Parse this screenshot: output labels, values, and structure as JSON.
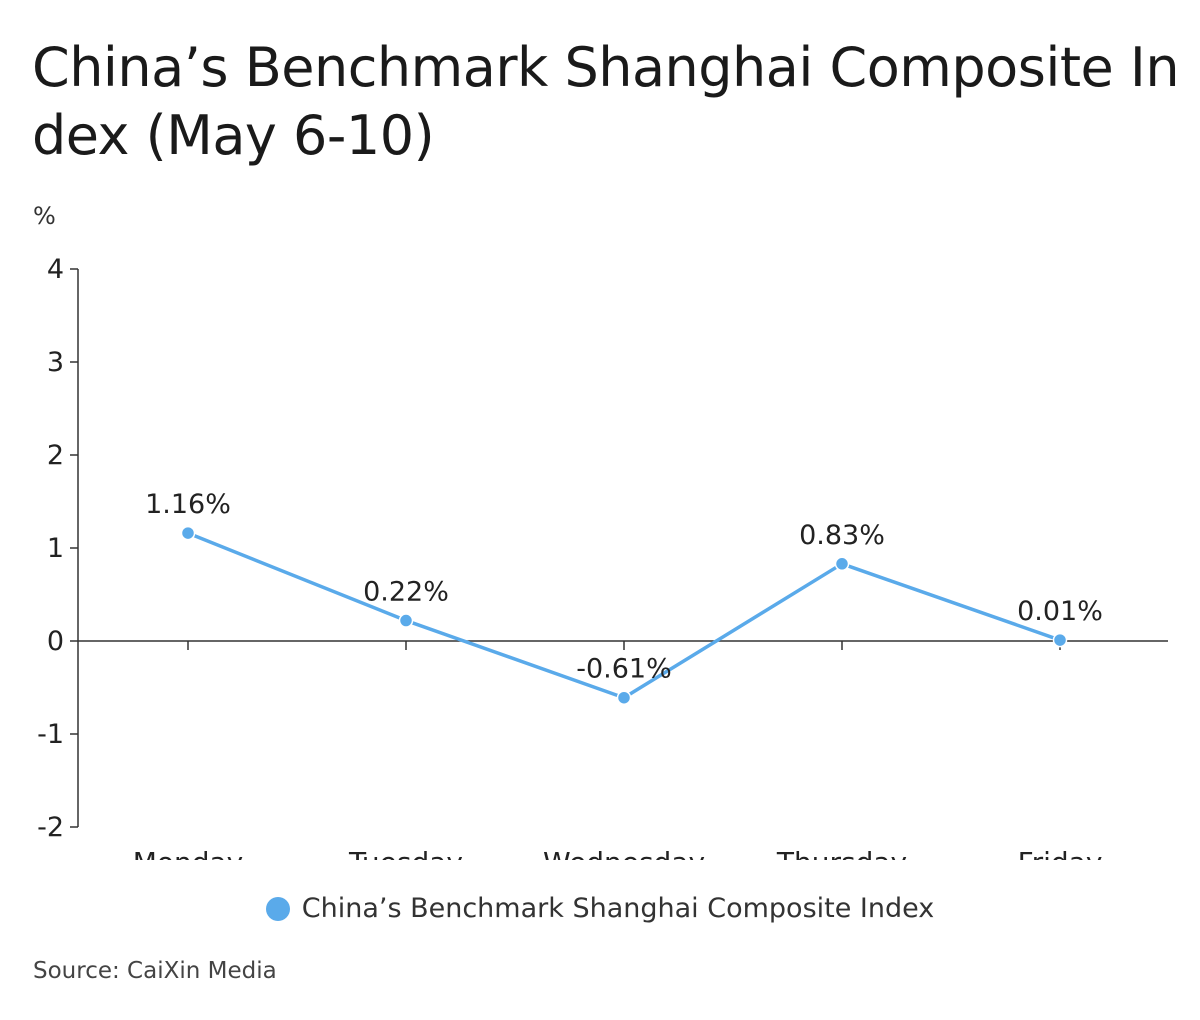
{
  "title": "China’s Benchmark Shanghai Composite In\ndex (May 6-10)",
  "unit_label": "%",
  "source": "Source: CaiXin Media",
  "colors": {
    "series": "#5aaaea",
    "axis": "#333333",
    "text": "#222222"
  },
  "chart_data": {
    "type": "line",
    "title": "China’s Benchmark Shanghai Composite In\ndex (May 6-10)",
    "xlabel": "",
    "ylabel": "%",
    "categories": [
      "Monday",
      "Tuesday",
      "Wednesday",
      "Thursday",
      "Friday"
    ],
    "ylim": [
      -2,
      4
    ],
    "yticks": [
      -2,
      -1,
      0,
      1,
      2,
      3,
      4
    ],
    "grid": false,
    "legend_position": "bottom",
    "series": [
      {
        "name": "China’s Benchmark Shanghai Composite Index",
        "values": [
          1.16,
          0.22,
          -0.61,
          0.83,
          0.01
        ],
        "labels": [
          "1.16%",
          "0.22%",
          "-0.61%",
          "0.83%",
          "0.01%"
        ],
        "color": "#5aaaea"
      }
    ]
  }
}
